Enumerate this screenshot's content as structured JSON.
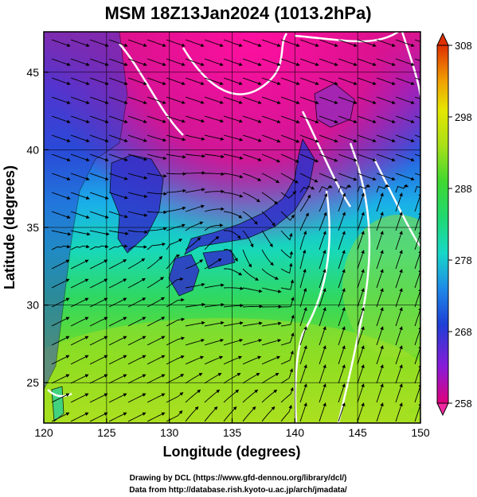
{
  "figure": {
    "title": "MSM 18Z13Jan2024 (1013.2hPa)",
    "xlabel": "Longitude (degrees)",
    "ylabel": "Latitude  (degrees)",
    "credit_line1": "Drawing by DCL (https://www.gfd-dennou.org/library/dcl/)",
    "credit_line2": "Data from http://database.rish.kyoto-u.ac.jp/arch/jmadata/"
  },
  "chart_data": {
    "type": "heatmap",
    "x_range": [
      120,
      150
    ],
    "y_range": [
      22.4,
      47.6
    ],
    "x_ticks": [
      120,
      125,
      130,
      135,
      140,
      145,
      150
    ],
    "y_ticks": [
      25,
      30,
      35,
      40,
      45
    ],
    "grid": true,
    "overlay": "streamlines",
    "colorbar": {
      "min": 258,
      "max": 308,
      "ticks": [
        258,
        268,
        278,
        288,
        298,
        308
      ]
    },
    "colors": {
      "cold": "#e0007a",
      "cool": "#1e3fd6",
      "mid": "#18d8c8",
      "warm": "#34d834",
      "hot": "#e0e000",
      "hottest": "#e04000"
    }
  }
}
